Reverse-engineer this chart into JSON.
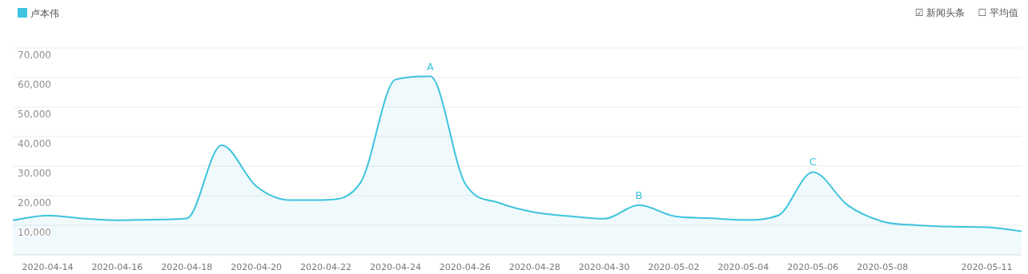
{
  "chart_data": {
    "type": "area",
    "legend": "top left",
    "grid": "y",
    "marker": "none",
    "line_style": "solid",
    "x": [
      "2020-04-13",
      "2020-04-14",
      "2020-04-15",
      "2020-04-16",
      "2020-04-17",
      "2020-04-18",
      "2020-04-19",
      "2020-04-20",
      "2020-04-21",
      "2020-04-22",
      "2020-04-23",
      "2020-04-24",
      "2020-04-25",
      "2020-04-26",
      "2020-04-27",
      "2020-04-28",
      "2020-04-29",
      "2020-04-30",
      "2020-05-01",
      "2020-05-02",
      "2020-05-03",
      "2020-05-04",
      "2020-05-05",
      "2020-05-06",
      "2020-05-07",
      "2020-05-08",
      "2020-05-09",
      "2020-05-10",
      "2020-05-11",
      "2020-05-12"
    ],
    "series": [
      {
        "name": "卢本伟",
        "color": "#3ec3de",
        "values": [
          11700,
          13300,
          12300,
          11700,
          11900,
          12300,
          37100,
          23200,
          18500,
          18600,
          24500,
          59300,
          60400,
          24200,
          17500,
          14400,
          13100,
          12200,
          16800,
          13100,
          12400,
          11800,
          13300,
          28000,
          16800,
          11300,
          10000,
          9500,
          9300,
          8000
        ]
      }
    ],
    "xlim": [
      "2020-04-13",
      "2020-05-12"
    ],
    "xticks": [
      {
        "value": "2020-04-14",
        "label": "2020-04-14"
      },
      {
        "value": "2020-04-16",
        "label": "2020-04-16"
      },
      {
        "value": "2020-04-18",
        "label": "2020-04-18"
      },
      {
        "value": "2020-04-20",
        "label": "2020-04-20"
      },
      {
        "value": "2020-04-22",
        "label": "2020-04-22"
      },
      {
        "value": "2020-04-24",
        "label": "2020-04-24"
      },
      {
        "value": "2020-04-26",
        "label": "2020-04-26"
      },
      {
        "value": "2020-04-28",
        "label": "2020-04-28"
      },
      {
        "value": "2020-04-30",
        "label": "2020-04-30"
      },
      {
        "value": "2020-05-02",
        "label": "2020-05-02"
      },
      {
        "value": "2020-05-04",
        "label": "2020-05-04"
      },
      {
        "value": "2020-05-06",
        "label": "2020-05-06"
      },
      {
        "value": "2020-05-08",
        "label": "2020-05-08"
      },
      {
        "value": "2020-05-11",
        "label": "2020-05-11"
      }
    ],
    "ylim": [
      0,
      70000
    ],
    "yticks": [
      {
        "value": 10000,
        "label": "10,000"
      },
      {
        "value": 20000,
        "label": "20,000"
      },
      {
        "value": 30000,
        "label": "30,000"
      },
      {
        "value": 40000,
        "label": "40,000"
      },
      {
        "value": 50000,
        "label": "50,000"
      },
      {
        "value": 60000,
        "label": "60,000"
      },
      {
        "value": 70000,
        "label": "70,000"
      }
    ],
    "annotations": [
      {
        "text": "A",
        "x": "2020-04-25",
        "y": 60400
      },
      {
        "text": "B",
        "x": "2020-05-01",
        "y": 16800
      },
      {
        "text": "C",
        "x": "2020-05-06",
        "y": 28000
      },
      "☑ 新闻头条",
      "☐ 平均值"
    ]
  }
}
